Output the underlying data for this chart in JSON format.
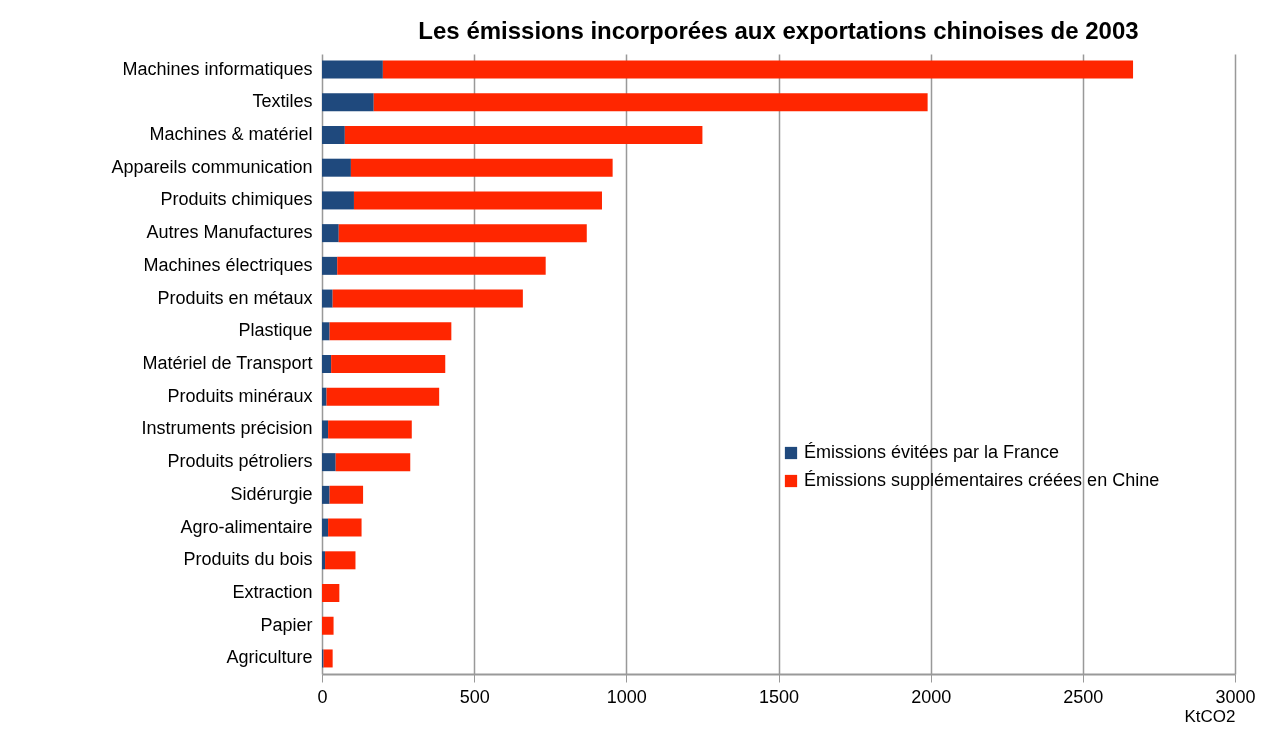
{
  "chart_data": {
    "type": "bar",
    "orientation": "horizontal",
    "stacked": true,
    "title": "Les émissions incorporées aux exportations chinoises de 2003",
    "xlabel": "KtCO2",
    "categories": [
      "Machines informatiques",
      "Textiles",
      "Machines & matériel",
      "Appareils communication",
      "Produits chimiques",
      "Autres Manufactures",
      "Machines électriques",
      "Produits en métaux",
      "Plastique",
      "Matériel de Transport",
      "Produits minéraux",
      "Instruments précision",
      "Produits pétroliers",
      "Sidérurgie",
      "Agro-alimentaire",
      "Produits du bois",
      "Extraction",
      "Papier",
      "Agriculture"
    ],
    "series": [
      {
        "name": "Émissions évitées par la France",
        "color": "#1f497d",
        "values": [
          200,
          170,
          75,
          95,
          105,
          55,
          50,
          35,
          25,
          30,
          15,
          20,
          45,
          25,
          20,
          10,
          null,
          null,
          5
        ]
      },
      {
        "name": "Émissions supplémentaires créées en Chine",
        "color": "#ff2600",
        "values": [
          2465,
          1820,
          1175,
          860,
          815,
          815,
          685,
          625,
          400,
          375,
          370,
          275,
          245,
          110,
          110,
          100,
          57,
          38,
          30
        ]
      }
    ],
    "xlim": [
      0,
      3000
    ],
    "xticks": [
      0,
      500,
      1000,
      1500,
      2000,
      2500,
      3000
    ],
    "grid": "x",
    "legend": "bottom right"
  }
}
